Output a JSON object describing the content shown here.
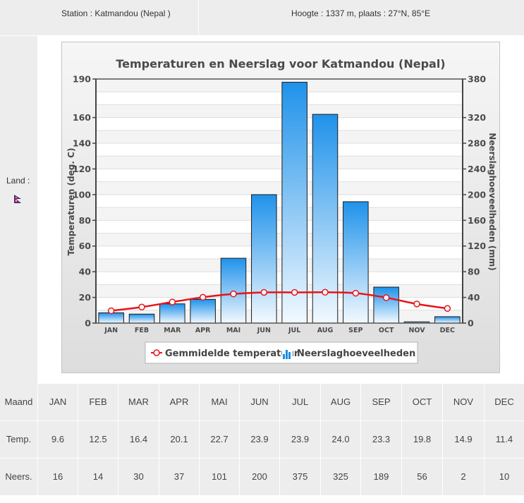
{
  "info": {
    "station": "Station : Katmandou (Nepal )",
    "height": "Hoogte : 1337 m, plaats : 27°N, 85°E",
    "land_label": "Land :",
    "flag_icon": "nepal-flag-icon"
  },
  "chart_data": {
    "type": "bar+line",
    "title": "Temperaturen en Neerslag voor Katmandou (Nepal)",
    "categories": [
      "JAN",
      "FEB",
      "MAR",
      "APR",
      "MAI",
      "JUN",
      "JUL",
      "AUG",
      "SEP",
      "OCT",
      "NOV",
      "DEC"
    ],
    "series": [
      {
        "name": "Gemmidelde temperatuur",
        "type": "line",
        "axis": "left",
        "color": "#e8141a",
        "values": [
          9.6,
          12.5,
          16.4,
          20.1,
          22.7,
          23.9,
          23.9,
          24.0,
          23.3,
          19.8,
          14.9,
          11.4
        ]
      },
      {
        "name": "Neerslaghoeveelheden",
        "type": "bar",
        "axis": "right",
        "color": "#1a8fe6",
        "values": [
          16,
          14,
          30,
          37,
          101,
          200,
          375,
          325,
          189,
          56,
          2,
          10
        ]
      }
    ],
    "ylabel": "Temperaturen (deg. C)",
    "y2label": "Neerslaghoeveelheden (mm)",
    "ylim": [
      0,
      190
    ],
    "y2lim": [
      0,
      380
    ],
    "yticks": [
      0,
      20,
      40,
      60,
      80,
      100,
      120,
      140,
      160,
      190
    ],
    "y2ticks": [
      0,
      40,
      80,
      120,
      160,
      200,
      240,
      280,
      320,
      380
    ],
    "grid": true,
    "legend": "bottom"
  },
  "table": {
    "headers": [
      "Maand",
      "JAN",
      "FEB",
      "MAR",
      "APR",
      "MAI",
      "JUN",
      "JUL",
      "AUG",
      "SEP",
      "OCT",
      "NOV",
      "DEC"
    ],
    "temp": [
      "Temp.",
      "9.6",
      "12.5",
      "16.4",
      "20.1",
      "22.7",
      "23.9",
      "23.9",
      "24.0",
      "23.3",
      "19.8",
      "14.9",
      "11.4"
    ],
    "neers": [
      "Neers.",
      "16",
      "14",
      "30",
      "37",
      "101",
      "200",
      "375",
      "325",
      "189",
      "56",
      "2",
      "10"
    ]
  }
}
